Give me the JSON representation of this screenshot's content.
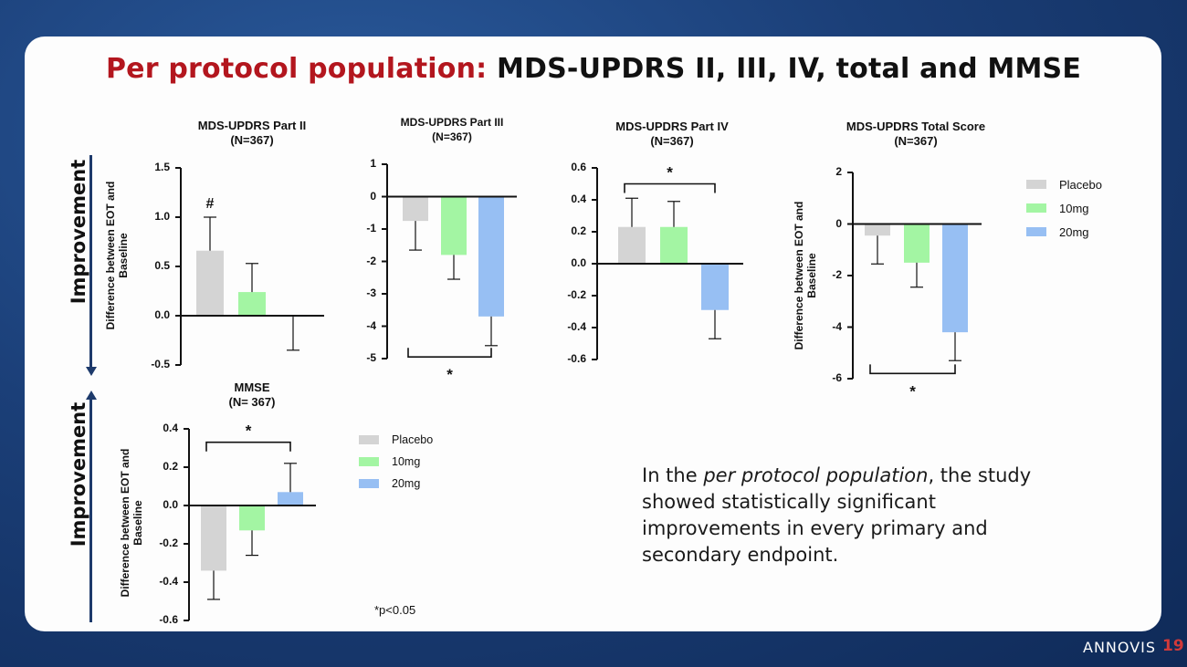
{
  "title": {
    "red": "Per protocol population:",
    "black": " MDS-UPDRS II, III, IV, total and MMSE"
  },
  "colors": {
    "placebo": "#d4d4d4",
    "mg10": "#a3f5a3",
    "mg20": "#97bff3",
    "accent_red": "#b3161e",
    "arrow": "#1d3a6b"
  },
  "improvement_label": "Improvement",
  "legend_top": [
    {
      "label": "Placebo"
    },
    {
      "label": "10mg"
    },
    {
      "label": "20mg"
    }
  ],
  "legend_bottom": [
    {
      "label": "Placebo"
    },
    {
      "label": "10mg"
    },
    {
      "label": "20mg"
    }
  ],
  "body_text": {
    "pre": "In the ",
    "italic": "per protocol population",
    "post": ", the study showed statistically significant improvements in every primary and secondary endpoint."
  },
  "footnote": "*p<0.05",
  "logo": "ANNOVIS",
  "page_number": "19",
  "chart_data": [
    {
      "id": "part2",
      "type": "bar",
      "title": "MDS-UPDRS Part II",
      "subtitle": "(N=367)",
      "ylabel": "Difference between EOT and Baseline",
      "ylim": [
        -0.5,
        1.5
      ],
      "ticks": [
        1.5,
        1.0,
        0.5,
        0.0,
        -0.5
      ],
      "tick_labels": [
        "1.5",
        "1.0",
        "0.5",
        "0.0",
        "-0.5"
      ],
      "categories": [
        "Placebo",
        "10mg",
        "20mg"
      ],
      "values": [
        0.66,
        0.24,
        -0.01
      ],
      "err": [
        0.34,
        0.29,
        0.34
      ],
      "annotations": [
        {
          "text": "#",
          "bar": 0
        }
      ]
    },
    {
      "id": "part3",
      "type": "bar",
      "title": "MDS-UPDRS Part III",
      "subtitle": "(N=367)",
      "ylabel": "",
      "ylim": [
        -5,
        1
      ],
      "ticks": [
        1,
        0,
        -1,
        -2,
        -3,
        -4,
        -5
      ],
      "tick_labels": [
        "1",
        "0",
        "-1",
        "-2",
        "-3",
        "-4",
        "-5"
      ],
      "categories": [
        "Placebo",
        "10mg",
        "20mg"
      ],
      "values": [
        -0.75,
        -1.8,
        -3.7
      ],
      "err": [
        0.9,
        0.75,
        0.9
      ],
      "annotations": [
        {
          "text": "*",
          "bracket": [
            0,
            2
          ],
          "side": "below"
        }
      ]
    },
    {
      "id": "part4",
      "type": "bar",
      "title": "MDS-UPDRS Part IV",
      "subtitle": "(N=367)",
      "ylabel": "",
      "ylim": [
        -0.6,
        0.6
      ],
      "ticks": [
        0.6,
        0.4,
        0.2,
        0.0,
        -0.2,
        -0.4,
        -0.6
      ],
      "tick_labels": [
        "0.6",
        "0.4",
        "0.2",
        "0.0",
        "-0.2",
        "-0.4",
        "-0.6"
      ],
      "categories": [
        "Placebo",
        "10mg",
        "20mg"
      ],
      "values": [
        0.23,
        0.23,
        -0.29
      ],
      "err": [
        0.18,
        0.16,
        0.18
      ],
      "annotations": [
        {
          "text": "*",
          "bracket": [
            0,
            2
          ],
          "side": "above"
        }
      ]
    },
    {
      "id": "total",
      "type": "bar",
      "title": "MDS-UPDRS Total Score",
      "subtitle": "(N=367)",
      "ylabel": "Difference between EOT and Baseline",
      "ylim": [
        -6,
        2
      ],
      "ticks": [
        2,
        0,
        -2,
        -4,
        -6
      ],
      "tick_labels": [
        "2",
        "0",
        "-2",
        "-4",
        "-6"
      ],
      "categories": [
        "Placebo",
        "10mg",
        "20mg"
      ],
      "values": [
        -0.45,
        -1.5,
        -4.2
      ],
      "err": [
        1.1,
        0.95,
        1.1
      ],
      "annotations": [
        {
          "text": "*",
          "bracket": [
            0,
            2
          ],
          "side": "below"
        }
      ]
    },
    {
      "id": "mmse",
      "type": "bar",
      "title": "MMSE",
      "subtitle": "(N= 367)",
      "ylabel": "Difference between EOT and Baseline",
      "ylim": [
        -0.6,
        0.4
      ],
      "ticks": [
        0.4,
        0.2,
        0.0,
        -0.2,
        -0.4,
        -0.6
      ],
      "tick_labels": [
        "0.4",
        "0.2",
        "0.0",
        "-0.2",
        "-0.4",
        "-0.6"
      ],
      "categories": [
        "Placebo",
        "10mg",
        "20mg"
      ],
      "values": [
        -0.34,
        -0.13,
        0.07
      ],
      "err": [
        0.15,
        0.13,
        0.15
      ],
      "annotations": [
        {
          "text": "*",
          "bracket": [
            0,
            2
          ],
          "side": "above"
        }
      ]
    }
  ]
}
